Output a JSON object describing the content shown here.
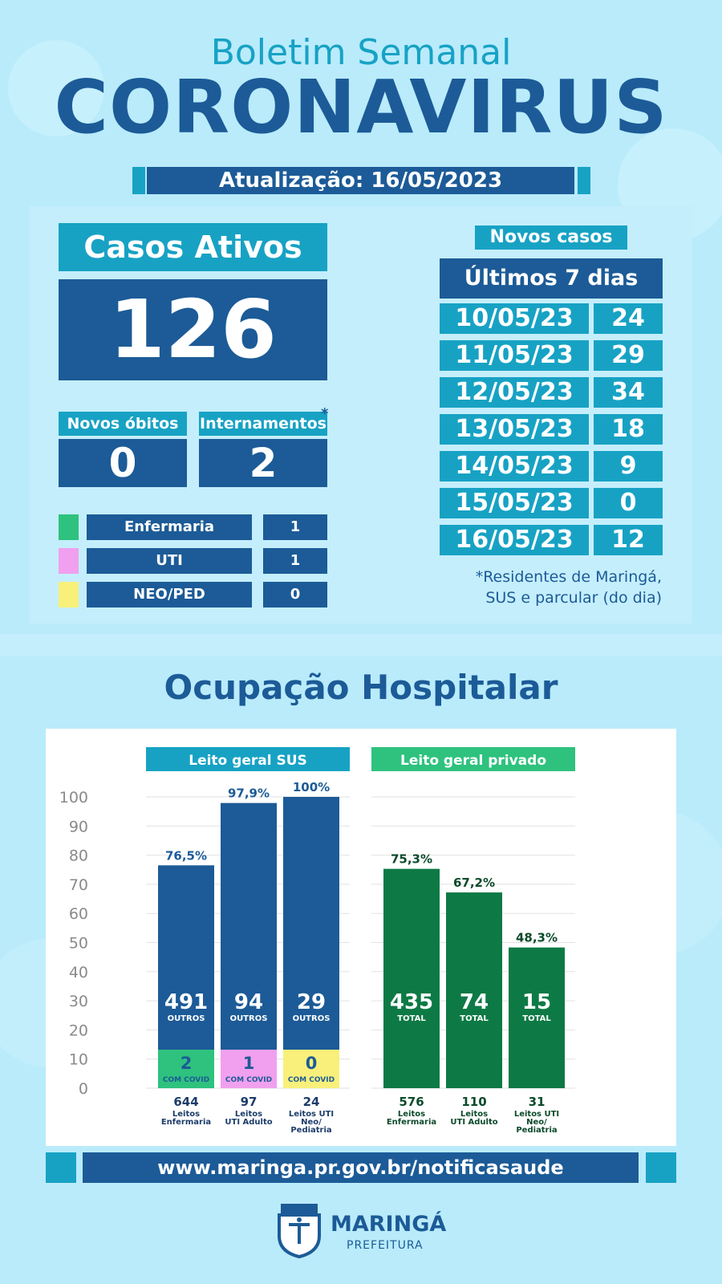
{
  "header": {
    "subtitle": "Boletim Semanal",
    "title": "CORONAVIRUS",
    "update_text": "Atualização: 16/05/2023"
  },
  "casos_ativos": {
    "label": "Casos Ativos",
    "value": "126"
  },
  "novos_obitos": {
    "label": "Novos óbitos",
    "value": "0"
  },
  "internamentos": {
    "label": "Internamentos",
    "value": "2",
    "asterisk": "*"
  },
  "internacoes_legend": [
    {
      "label": "Enfermaria",
      "value": "1",
      "color": "#2ec27e"
    },
    {
      "label": "UTI",
      "value": "1",
      "color": "#f0a0ee"
    },
    {
      "label": "NEO/PED",
      "value": "0",
      "color": "#f8f07a"
    }
  ],
  "novos_casos": {
    "title": "Novos casos",
    "subtitle": "Últimos 7 dias",
    "rows": [
      {
        "date": "10/05/23",
        "value": "24"
      },
      {
        "date": "11/05/23",
        "value": "29"
      },
      {
        "date": "12/05/23",
        "value": "34"
      },
      {
        "date": "13/05/23",
        "value": "18"
      },
      {
        "date": "14/05/23",
        "value": "9"
      },
      {
        "date": "15/05/23",
        "value": "0"
      },
      {
        "date": "16/05/23",
        "value": "12"
      }
    ],
    "footnote_line1": "*Residentes de Maringá,",
    "footnote_line2": "SUS e parcular (do dia)"
  },
  "ocupacao": {
    "title": "Ocupação Hospitalar"
  },
  "chart_data": [
    {
      "type": "bar",
      "title": "Leito geral SUS",
      "ylim": [
        0,
        100
      ],
      "yticks": [
        0,
        10,
        20,
        30,
        40,
        50,
        60,
        70,
        80,
        90,
        100
      ],
      "categories": [
        {
          "count": "644",
          "name": [
            "Leitos",
            "Enfermaria"
          ]
        },
        {
          "count": "97",
          "name": [
            "Leitos",
            "UTI Adulto"
          ]
        },
        {
          "count": "24",
          "name": [
            "Leitos UTI",
            "Neo/",
            "Pediatria"
          ]
        }
      ],
      "values": [
        76.5,
        97.9,
        100
      ],
      "value_labels": [
        "76,5%",
        "97,9%",
        "100%"
      ],
      "outros": [
        "491",
        "94",
        "29"
      ],
      "outros_label": "OUTROS",
      "com_covid": [
        "2",
        "1",
        "0"
      ],
      "com_covid_label": "COM COVID",
      "bar_color": "#1c5b97",
      "covid_colors": [
        "#2ec27e",
        "#f0a0ee",
        "#f8f07a"
      ],
      "header_color": "#17a2c4"
    },
    {
      "type": "bar",
      "title": "Leito geral privado",
      "ylim": [
        0,
        100
      ],
      "categories": [
        {
          "count": "576",
          "name": [
            "Leitos",
            "Enfermaria"
          ]
        },
        {
          "count": "110",
          "name": [
            "Leitos",
            "UTI Adulto"
          ]
        },
        {
          "count": "31",
          "name": [
            "Leitos UTI",
            "Neo/",
            "Pediatria"
          ]
        }
      ],
      "values": [
        75.3,
        67.2,
        48.3
      ],
      "value_labels": [
        "75,3%",
        "67,2%",
        "48,3%"
      ],
      "totals": [
        "435",
        "74",
        "15"
      ],
      "total_label": "TOTAL",
      "bar_color": "#0d7a45",
      "header_color": "#2ec27e"
    }
  ],
  "footer": {
    "url": "www.maringa.pr.gov.br/notificasaude",
    "logo_name": "MARINGÁ",
    "logo_sub": "PREFEITURA"
  }
}
